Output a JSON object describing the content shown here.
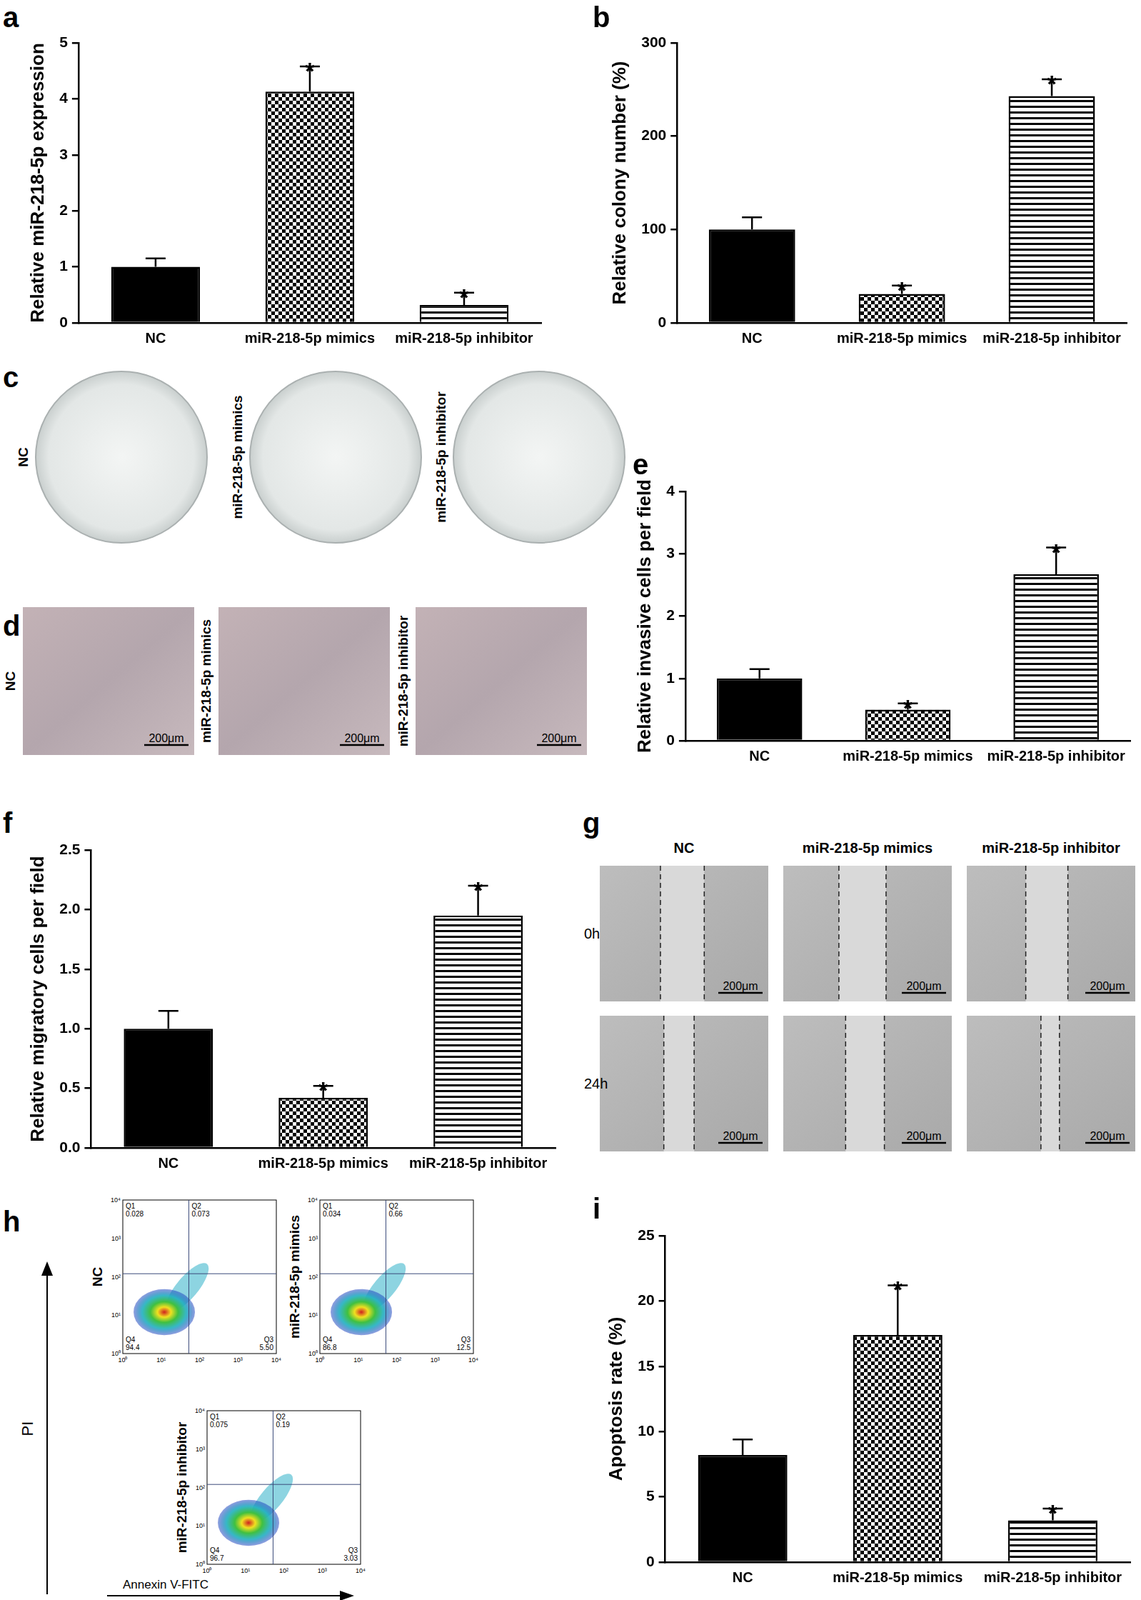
{
  "chart_data": [
    {
      "panel": "a",
      "type": "bar",
      "categories": [
        "NC",
        "miR-218-5p mimics",
        "miR-218-5p inhibitor"
      ],
      "values": [
        1.0,
        4.13,
        0.32
      ],
      "errors": [
        0.15,
        0.45,
        0.22
      ],
      "significance": [
        null,
        "*",
        "*"
      ],
      "colors": [
        "#000000",
        "#000000",
        "#000000"
      ],
      "y_label": "Relative miR-218-5p expression",
      "ylim": [
        0,
        5
      ],
      "yticks": [
        0,
        1,
        2,
        3,
        4,
        5
      ]
    },
    {
      "panel": "b",
      "type": "bar",
      "categories": [
        "NC",
        "miR-218-5p mimics",
        "miR-218-5p inhibitor"
      ],
      "values": [
        100,
        31,
        243
      ],
      "errors": [
        13,
        9,
        18
      ],
      "significance": [
        null,
        "*",
        "*"
      ],
      "colors": [
        "#000000",
        "#000000",
        "#000000"
      ],
      "y_label": "Relative colony number (%)",
      "ylim": [
        0,
        300
      ],
      "yticks": [
        0,
        100,
        200,
        300
      ]
    },
    {
      "panel": "e",
      "type": "bar",
      "categories": [
        "NC",
        "miR-218-5p mimics",
        "miR-218-5p inhibitor"
      ],
      "values": [
        1.0,
        0.5,
        2.67
      ],
      "errors": [
        0.15,
        0.1,
        0.43
      ],
      "significance": [
        null,
        "*",
        "*"
      ],
      "colors": [
        "#000000",
        "#000000",
        "#000000"
      ],
      "y_label": "Relative invasive cells per field",
      "ylim": [
        0,
        4
      ],
      "yticks": [
        0,
        1,
        2,
        3,
        4
      ]
    },
    {
      "panel": "f",
      "type": "bar",
      "categories": [
        "NC",
        "miR-218-5p mimics",
        "miR-218-5p inhibitor"
      ],
      "values": [
        1.0,
        0.42,
        1.95
      ],
      "errors": [
        0.15,
        0.1,
        0.25
      ],
      "significance": [
        null,
        "*",
        "*"
      ],
      "colors": [
        "#000000",
        "#000000",
        "#000000"
      ],
      "y_label": "Relative migratory cells per field",
      "ylim": [
        0,
        2.5
      ],
      "yticks": [
        {
          "value": 0,
          "label": "0.0"
        },
        0.5,
        {
          "value": 1,
          "label": "1.0"
        },
        1.5,
        {
          "value": 2,
          "label": "2.0"
        },
        2.5
      ]
    },
    {
      "panel": "i",
      "type": "bar",
      "categories": [
        "NC",
        "miR-218-5p mimics",
        "miR-218-5p inhibitor"
      ],
      "values": [
        8.2,
        17.4,
        3.2
      ],
      "errors": [
        1.2,
        3.8,
        0.9
      ],
      "significance": [
        null,
        "*",
        "*"
      ],
      "colors": [
        "#000000",
        "#000000",
        "#000000"
      ],
      "y_label": "Apoptosis rate (%)",
      "ylim": [
        0,
        25
      ],
      "yticks": [
        0,
        5,
        10,
        15,
        20,
        25
      ]
    }
  ],
  "image_panels": [
    {
      "panel": "c",
      "type": "colony_plates",
      "labels": [
        "NC",
        "miR-218-5p mimics",
        "miR-218-5p inhibitor"
      ]
    },
    {
      "panel": "d",
      "type": "transwell_images",
      "labels": [
        "NC",
        "miR-218-5p mimics",
        "miR-218-5p inhibitor"
      ],
      "scale_bar": "200μm"
    },
    {
      "panel": "g",
      "type": "wound_images",
      "columns": [
        "NC",
        "miR-218-5p mimics",
        "miR-218-5p inhibitor"
      ],
      "rows": [
        "0h",
        "24h"
      ],
      "scale_bar": "200μm"
    },
    {
      "panel": "h",
      "type": "flow_cytometry",
      "x_label": "Annexin V-FITC",
      "y_label": "PI",
      "ticks": [
        "10⁰",
        "10¹",
        "10²",
        "10³",
        "10⁴"
      ],
      "plots": [
        {
          "label": "NC",
          "quadrants": [
            {
              "name": "Q1",
              "value": "0.028"
            },
            {
              "name": "Q2",
              "value": "0.073"
            },
            {
              "name": "Q3",
              "value": "5.50"
            },
            {
              "name": "Q4",
              "value": "94.4"
            }
          ]
        },
        {
          "label": "miR-218-5p mimics",
          "quadrants": [
            {
              "name": "Q1",
              "value": "0.034"
            },
            {
              "name": "Q2",
              "value": "0.66"
            },
            {
              "name": "Q3",
              "value": "12.5"
            },
            {
              "name": "Q4",
              "value": "86.8"
            }
          ]
        },
        {
          "label": "miR-218-5p inhibitor",
          "quadrants": [
            {
              "name": "Q1",
              "value": "0.075"
            },
            {
              "name": "Q2",
              "value": "0.19"
            },
            {
              "name": "Q3",
              "value": "3.03"
            },
            {
              "name": "Q4",
              "value": "96.7"
            }
          ]
        }
      ]
    }
  ]
}
